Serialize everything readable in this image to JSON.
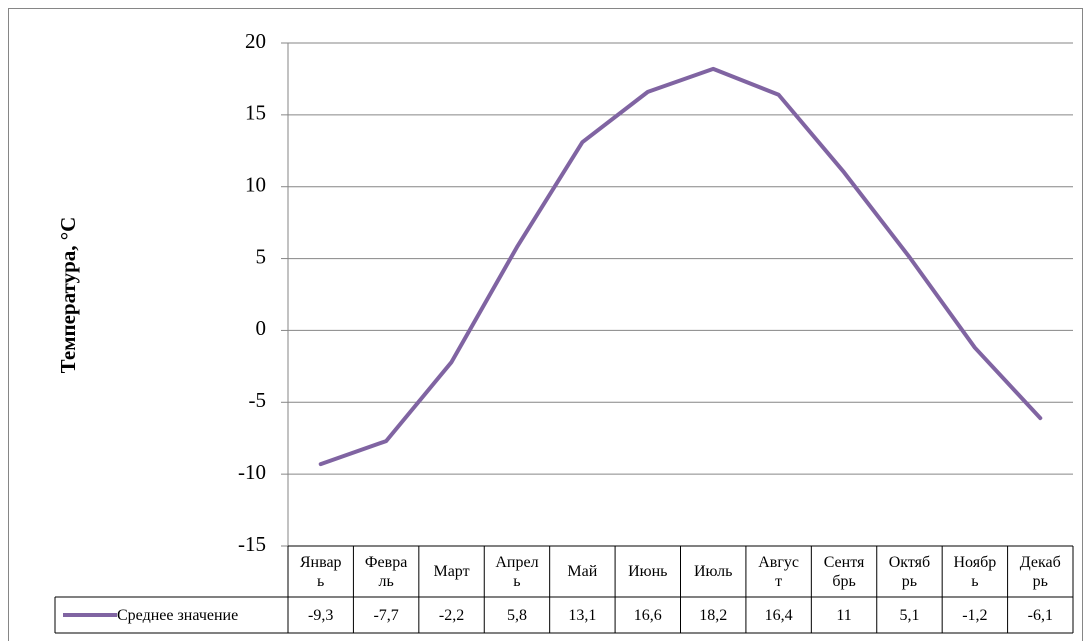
{
  "chart_data": {
    "type": "line",
    "y_label": "Температура, °C",
    "categories": [
      "Январь",
      "Февраль",
      "Март",
      "Апрель",
      "Май",
      "Июнь",
      "Июль",
      "Август",
      "Сентябрь",
      "Октябрь",
      "Ноябрь",
      "Декабрь"
    ],
    "series": [
      {
        "name": "Среднее значение",
        "color": "#8064a2",
        "values": [
          -9.3,
          -7.7,
          -2.2,
          5.8,
          13.1,
          16.6,
          18.2,
          16.4,
          11,
          5.1,
          -1.2,
          -6.1
        ],
        "value_labels": [
          "-9,3",
          "-7,7",
          "-2,2",
          "5,8",
          "13,1",
          "16,6",
          "18,2",
          "16,4",
          "11",
          "5,1",
          "-1,2",
          "-6,1"
        ]
      }
    ],
    "ylim": [
      -15,
      20
    ],
    "yticks": [
      -15,
      -10,
      -5,
      0,
      5,
      10,
      15,
      20
    ],
    "grid": true,
    "data_table": true
  }
}
